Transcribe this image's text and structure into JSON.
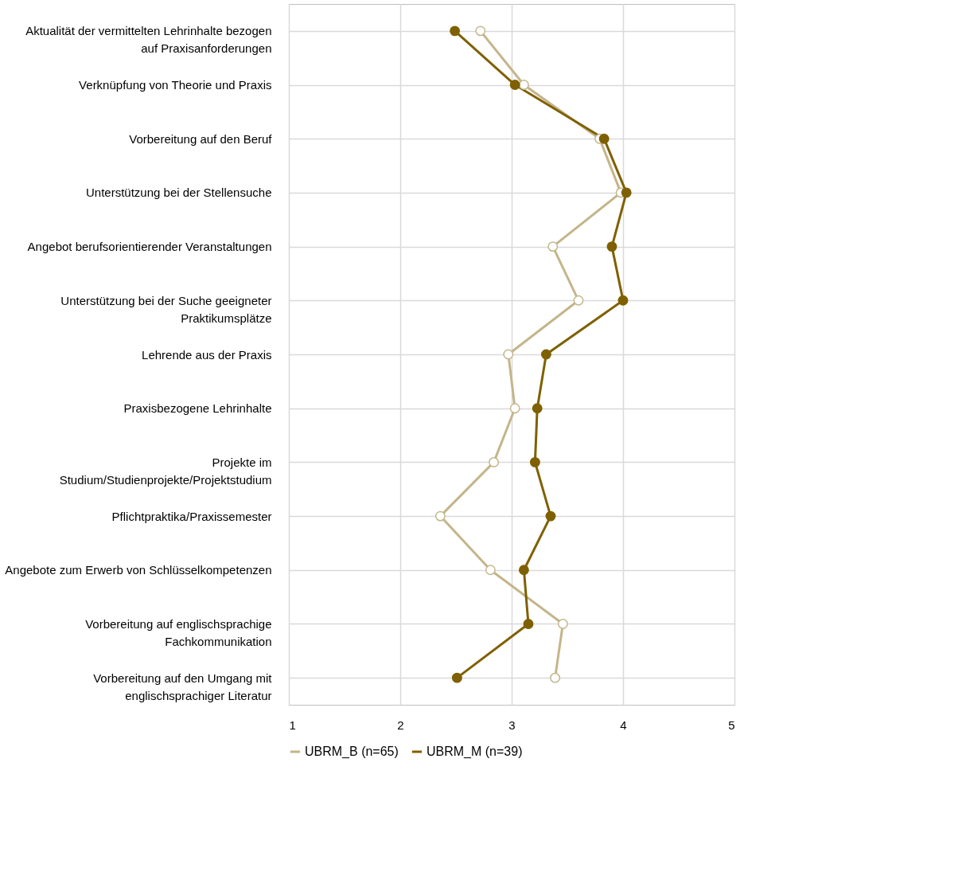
{
  "chart_data": {
    "type": "line",
    "orientation": "horizontal",
    "categories": [
      "Aktualität der vermittelten Lehrinhalte bezogen auf Praxisanforderungen",
      "Verknüpfung von Theorie und Praxis",
      "Vorbereitung auf den Beruf",
      "Unterstützung bei der Stellensuche",
      "Angebot berufsorientierender Veranstaltungen",
      "Unterstützung bei der Suche geeigneter Praktikumsplätze",
      "Lehrende aus der Praxis",
      "Praxisbezogene Lehrinhalte",
      "Projekte im Studium/Studienprojekte/Projektstudium",
      "Pflichtpraktika/Praxissemester",
      "Angebote zum Erwerb von Schlüsselkompetenzen",
      "Vorbereitung auf englischsprachige Fachkommunikation",
      "Vorbereitung auf den Umgang mit englischsprachiger Literatur"
    ],
    "series": [
      {
        "name": "UBRM_B (n=65)",
        "color": "#c4b58a",
        "values": [
          2.72,
          3.11,
          3.79,
          3.98,
          3.37,
          3.6,
          2.97,
          3.03,
          2.84,
          2.36,
          2.81,
          3.46,
          3.39
        ]
      },
      {
        "name": "UBRM_M (n=39)",
        "color": "#7f6000",
        "values": [
          2.49,
          3.03,
          3.83,
          4.03,
          3.9,
          4.0,
          3.31,
          3.23,
          3.21,
          3.35,
          3.11,
          3.15,
          2.51
        ]
      }
    ],
    "xlim": [
      1,
      5
    ],
    "xticks": [
      1,
      2,
      3,
      4,
      5
    ],
    "grid": true,
    "legend": "bottom",
    "marker": "circle",
    "line_style": "solid"
  }
}
